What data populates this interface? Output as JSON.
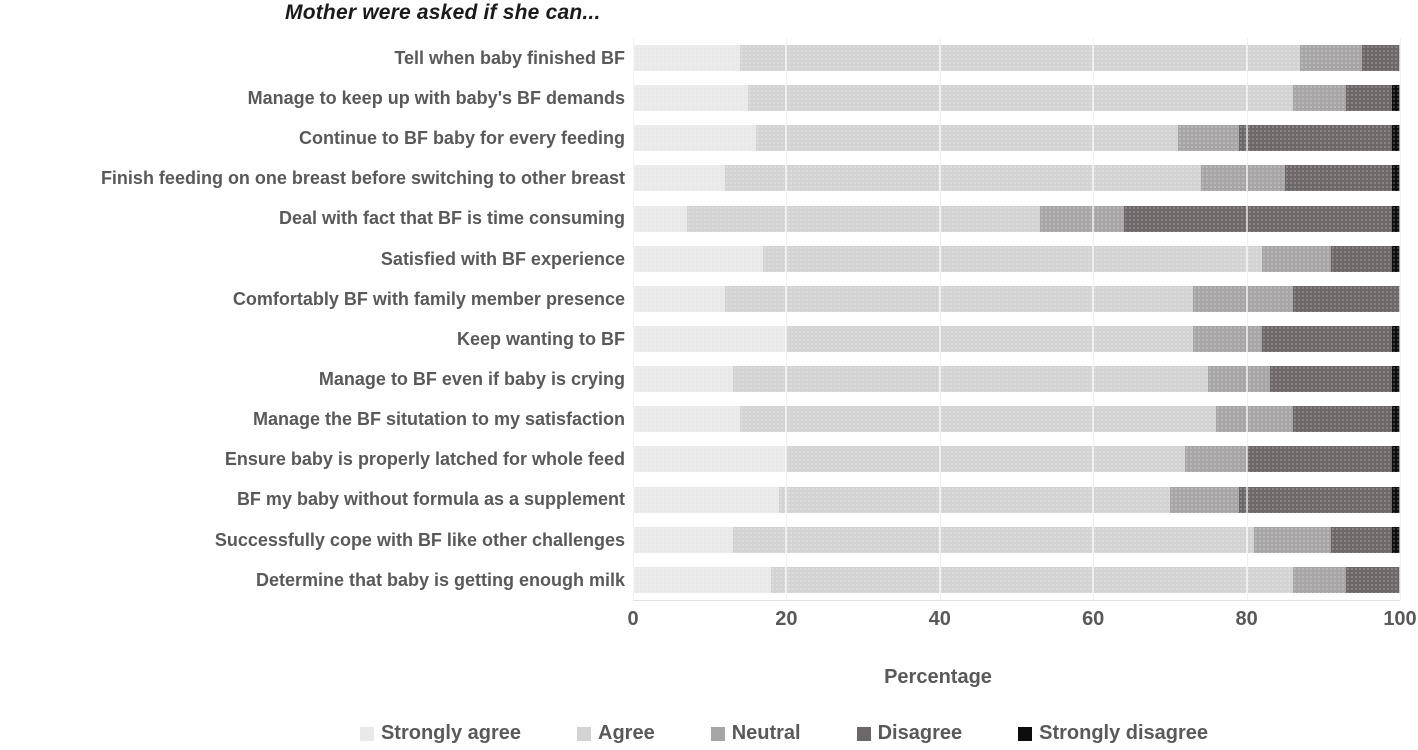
{
  "title": "Mother were asked if she can...",
  "colors": {
    "text": "#595959",
    "title_text": "#1b1b1b",
    "gridline": "#d9d9d9",
    "background": "#ffffff"
  },
  "chart_data": {
    "type": "bar",
    "orientation": "horizontal",
    "stacked": true,
    "title": "Mother were asked if she can...",
    "xlabel": "Percentage",
    "ylabel": "",
    "xlim": [
      0,
      100
    ],
    "xticks": [
      0,
      20,
      40,
      60,
      80,
      100
    ],
    "grid": "vertical",
    "legend_position": "bottom",
    "categories": [
      "Tell when baby finished BF",
      "Manage to keep up with baby's BF demands",
      "Continue to BF  baby for every feeding",
      "Finish feeding on one breast before switching to other breast",
      "Deal with fact that BF is time consuming",
      "Satisfied with BF experience",
      "Comfortably BF with family member presence",
      "Keep wanting to BF",
      "Manage to BF even if  baby is crying",
      "Manage the BF situtation to my satisfaction",
      "Ensure baby is properly latched for whole feed",
      "BF my baby without  formula as a supplement",
      "Successfully cope with BF like other challenges",
      "Determine that baby is getting enough milk"
    ],
    "series": [
      {
        "name": "Strongly agree",
        "color": "#e9e9e9",
        "values": [
          14,
          15,
          16,
          12,
          7,
          17,
          12,
          20,
          13,
          14,
          20,
          19,
          13,
          18
        ]
      },
      {
        "name": "Agree",
        "color": "#d3d3d3",
        "values": [
          73,
          71,
          55,
          62,
          46,
          65,
          61,
          53,
          62,
          62,
          52,
          51,
          68,
          68
        ]
      },
      {
        "name": "Neutral",
        "color": "#a7a5a5",
        "values": [
          8,
          7,
          8,
          11,
          11,
          9,
          13,
          9,
          8,
          10,
          8,
          9,
          10,
          7
        ]
      },
      {
        "name": "Disagree",
        "color": "#6d6868",
        "values": [
          5,
          6,
          20,
          14,
          35,
          8,
          14,
          17,
          16,
          13,
          19,
          20,
          8,
          7
        ]
      },
      {
        "name": "Strongly disagree",
        "color": "#0d0d0d",
        "values": [
          0,
          1,
          1,
          1,
          1,
          1,
          0,
          1,
          1,
          1,
          1,
          1,
          1,
          0
        ]
      }
    ]
  }
}
